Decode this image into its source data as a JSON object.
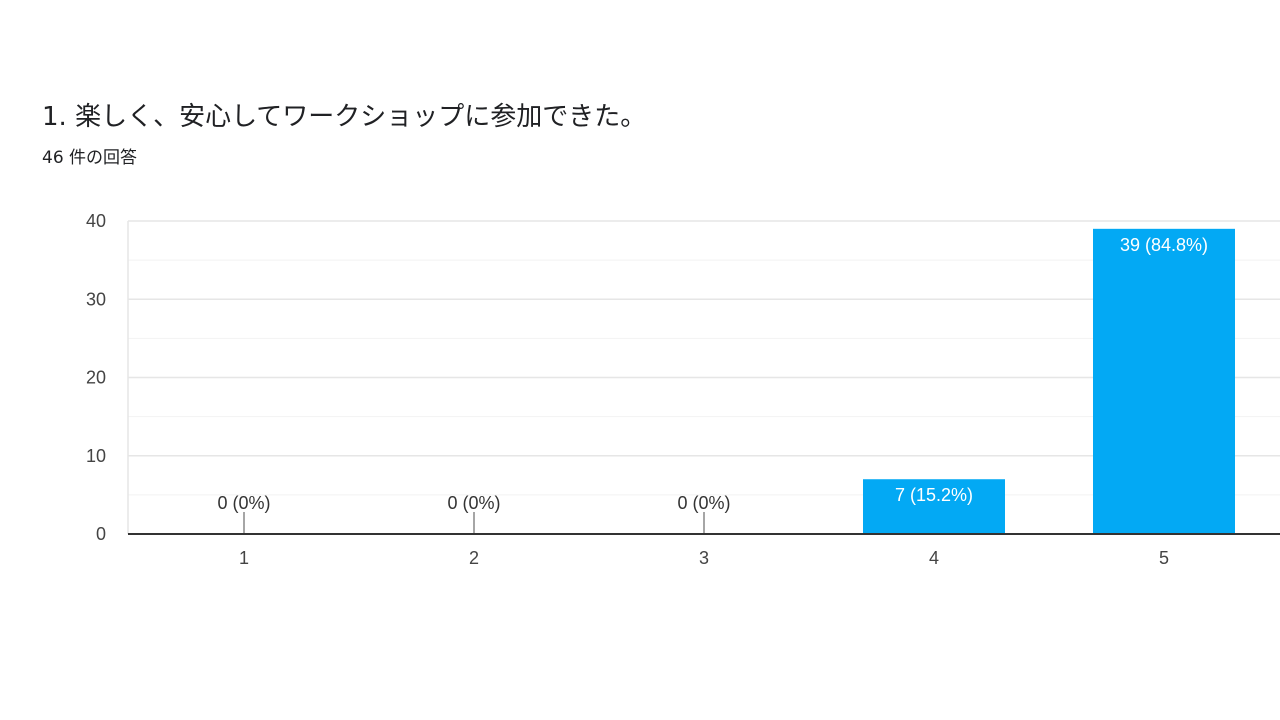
{
  "header": {
    "title": "1. 楽しく、安心してワークショップに参加できた。",
    "response_count": "46 件の回答"
  },
  "colors": {
    "bar": "#03a9f4",
    "bar_label_inside": "#ffffff",
    "bar_label_outside": "#333333",
    "gridline": "#e6e6e6",
    "minor_gridline": "#f2f2f2",
    "axis": "#333333",
    "text": "#202124"
  },
  "chart_data": {
    "type": "bar",
    "title": "1. 楽しく、安心してワークショップに参加できた。",
    "categories": [
      "1",
      "2",
      "3",
      "4",
      "5"
    ],
    "values": [
      0,
      0,
      0,
      7,
      39
    ],
    "data_labels": [
      "0 (0%)",
      "0 (0%)",
      "0 (0%)",
      "7 (15.2%)",
      "39 (84.8%)"
    ],
    "ylim": [
      0,
      40
    ],
    "y_ticks": [
      0,
      10,
      20,
      30,
      40
    ],
    "xlabel": "",
    "ylabel": "",
    "grid": true,
    "legend": "none"
  }
}
